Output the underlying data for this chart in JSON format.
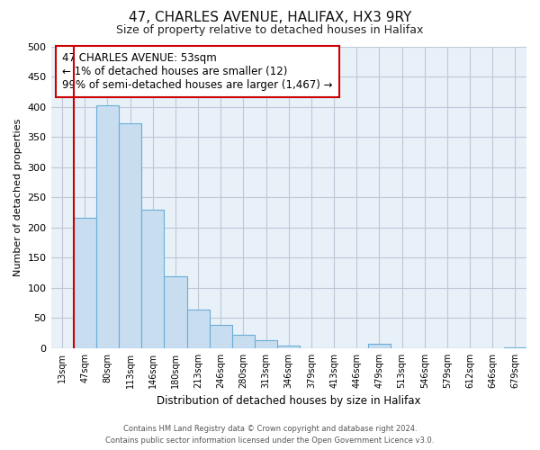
{
  "title": "47, CHARLES AVENUE, HALIFAX, HX3 9RY",
  "subtitle": "Size of property relative to detached houses in Halifax",
  "xlabel": "Distribution of detached houses by size in Halifax",
  "ylabel": "Number of detached properties",
  "footer_line1": "Contains HM Land Registry data © Crown copyright and database right 2024.",
  "footer_line2": "Contains public sector information licensed under the Open Government Licence v3.0.",
  "annotation_title": "47 CHARLES AVENUE: 53sqm",
  "annotation_line1": "← 1% of detached houses are smaller (12)",
  "annotation_line2": "99% of semi-detached houses are larger (1,467) →",
  "bar_color": "#c8ddf0",
  "bar_edge_color": "#6aaed6",
  "plot_bg_color": "#e8f0f8",
  "highlight_line_color": "#cc0000",
  "annotation_box_edge_color": "#cc0000",
  "grid_color": "#c0c8d8",
  "background_color": "#ffffff",
  "bin_labels": [
    "13sqm",
    "47sqm",
    "80sqm",
    "113sqm",
    "146sqm",
    "180sqm",
    "213sqm",
    "246sqm",
    "280sqm",
    "313sqm",
    "346sqm",
    "379sqm",
    "413sqm",
    "446sqm",
    "479sqm",
    "513sqm",
    "546sqm",
    "579sqm",
    "612sqm",
    "646sqm",
    "679sqm"
  ],
  "bar_heights": [
    0,
    216,
    403,
    372,
    229,
    119,
    64,
    39,
    22,
    14,
    5,
    0,
    0,
    0,
    8,
    0,
    0,
    0,
    0,
    0,
    2
  ],
  "highlight_bin_index": 1,
  "ylim": [
    0,
    500
  ],
  "yticks": [
    0,
    50,
    100,
    150,
    200,
    250,
    300,
    350,
    400,
    450,
    500
  ]
}
